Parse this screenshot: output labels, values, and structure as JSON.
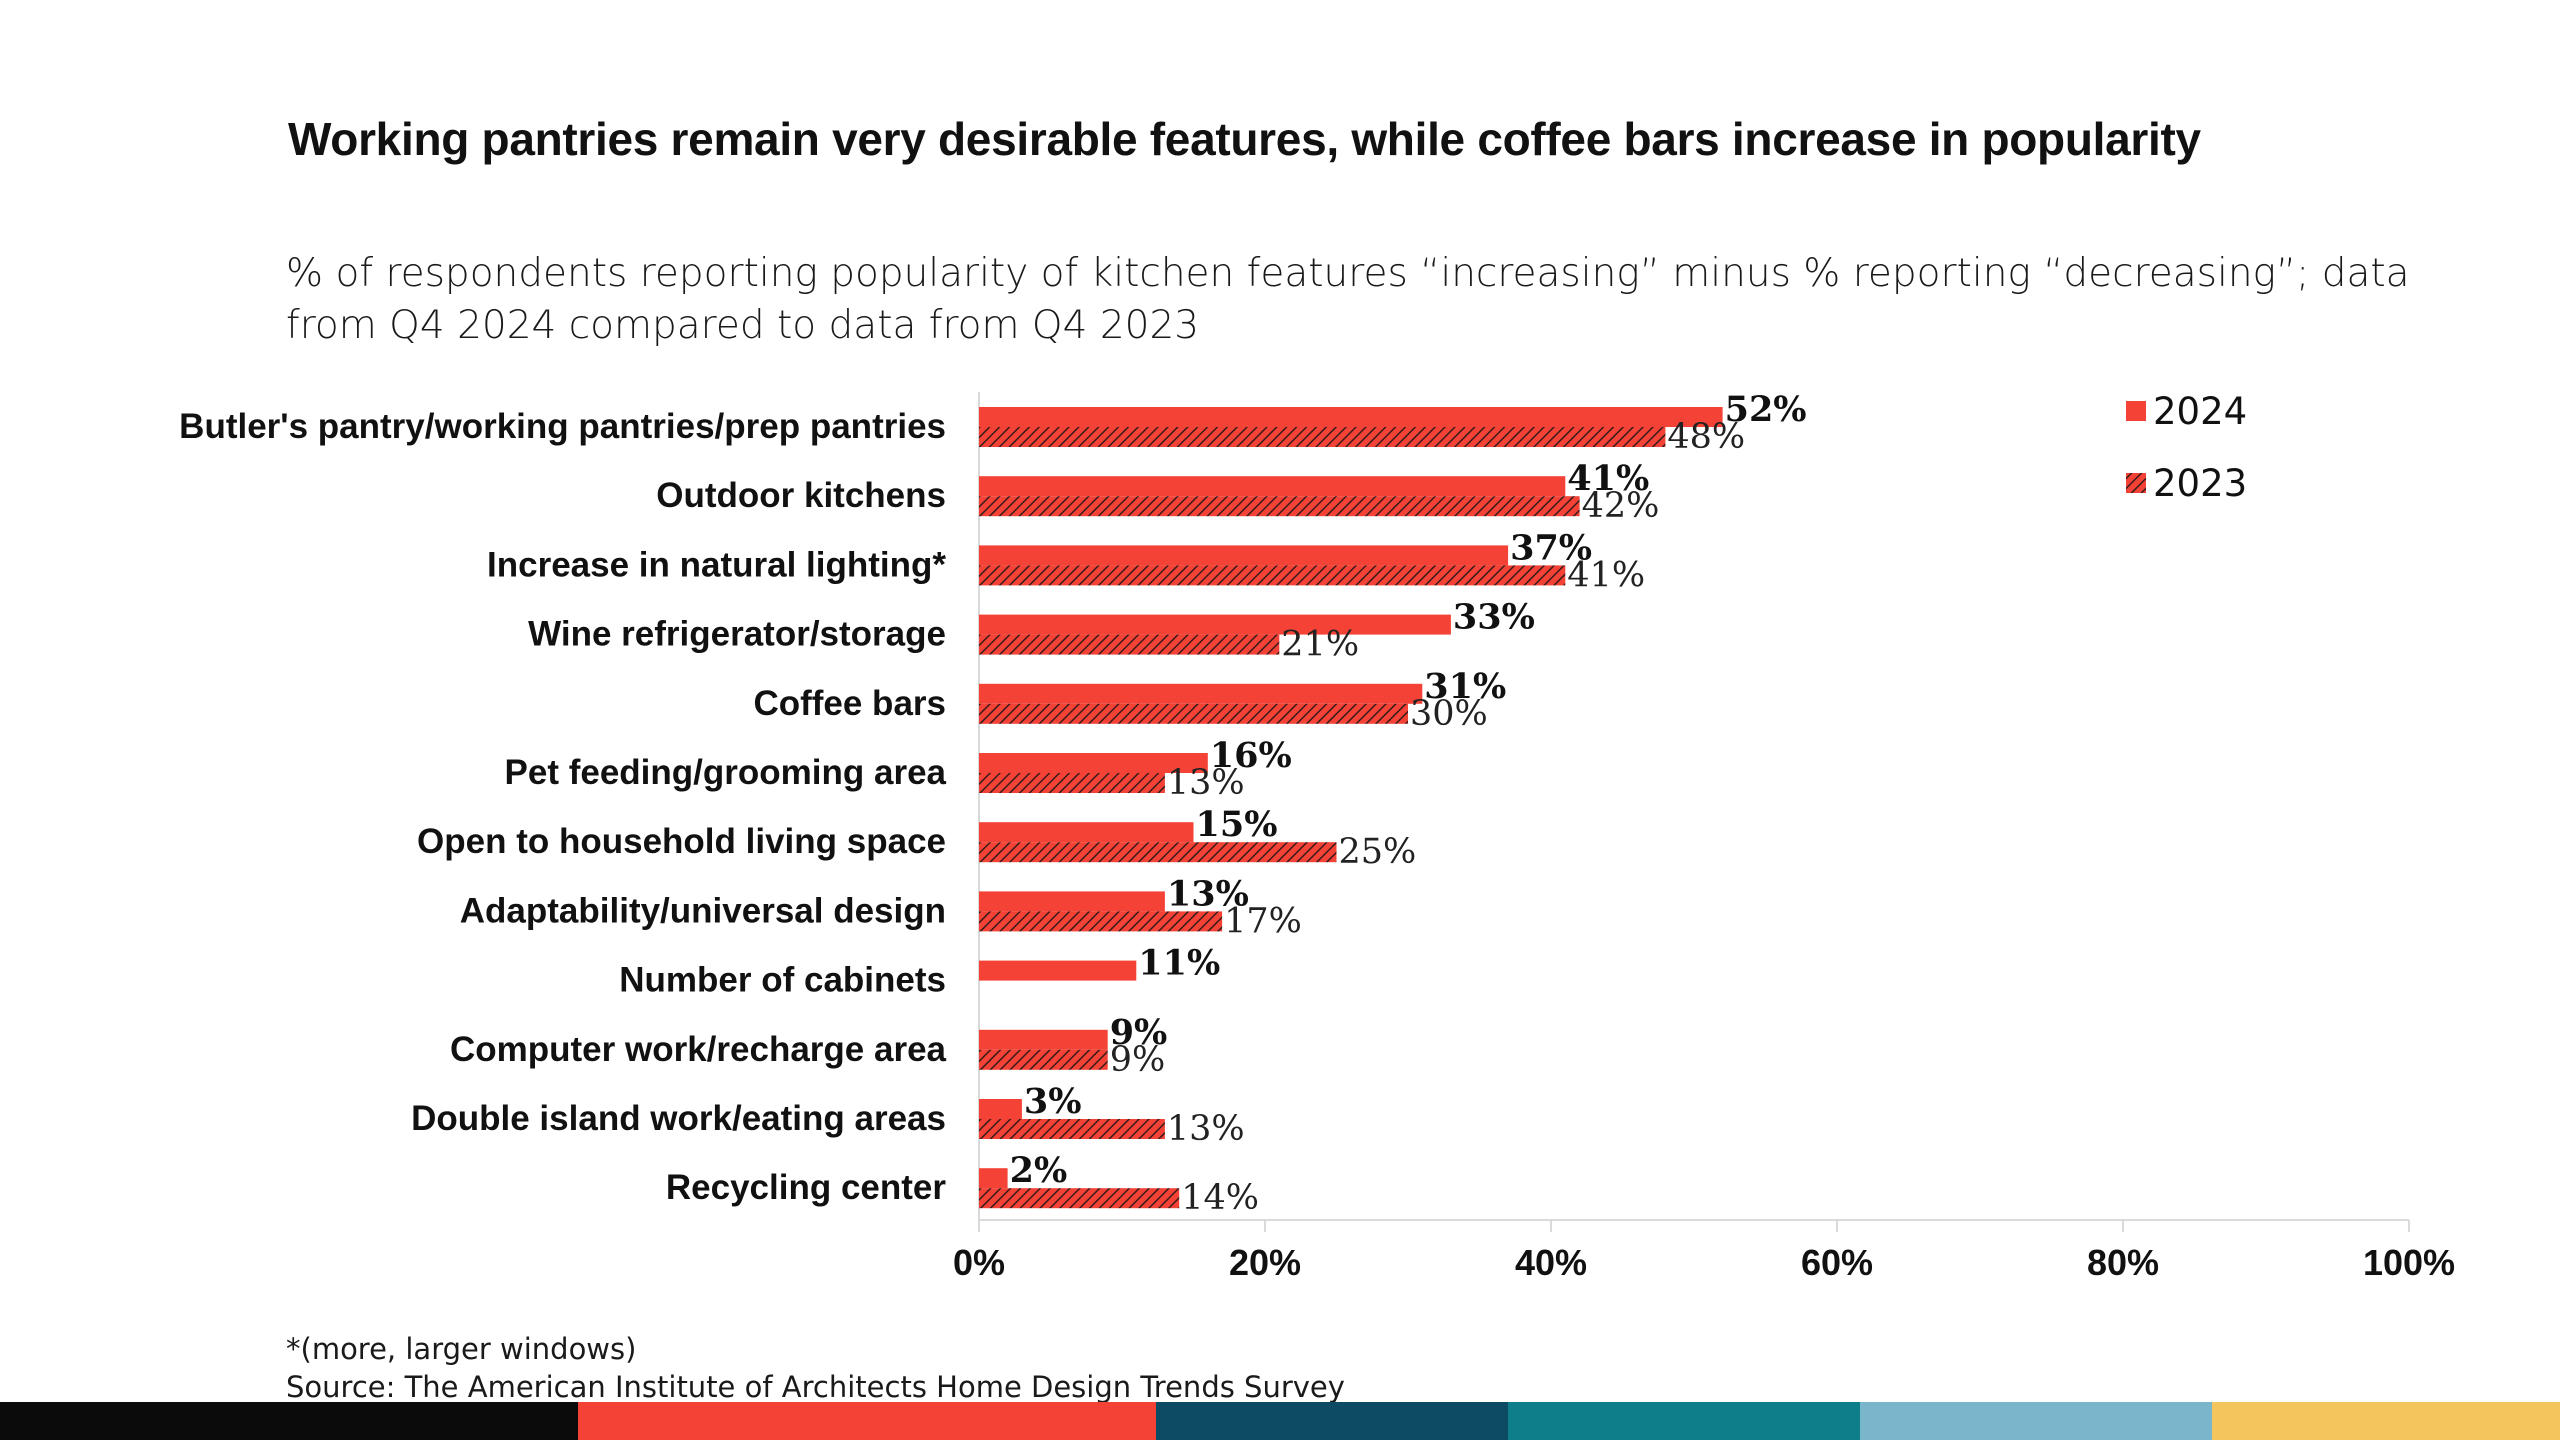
{
  "title": "Working pantries remain very desirable features, while coffee bars increase in popularity",
  "subtitle": "% of respondents reporting popularity of kitchen features “increasing” minus % reporting “decreasing”; data from Q4 2024 compared to data from Q4 2023",
  "footnote": "*(more, larger windows)",
  "source": "Source: The American Institute of Architects Home Design Trends Survey",
  "colors": {
    "series_2024": "#f44336",
    "series_2023": "#f44336",
    "hatch": "#3a1a1a",
    "axis": "#d9d9d9",
    "footer_bar": [
      "#0b0b0b",
      "#f44336",
      "#0d4a63",
      "#0e7f8a",
      "#79b6cc",
      "#f4c55c"
    ]
  },
  "chart_data": {
    "type": "bar",
    "orientation": "horizontal",
    "categories": [
      "Butler's pantry/working pantries/prep pantries",
      "Outdoor kitchens",
      "Increase in natural lighting*",
      "Wine refrigerator/storage",
      "Coffee bars",
      "Pet feeding/grooming area",
      "Open to household living space",
      "Adaptability/universal design",
      "Number of cabinets",
      "Computer work/recharge area",
      "Double island work/eating areas",
      "Recycling center"
    ],
    "series": [
      {
        "name": "2024",
        "values": [
          52,
          41,
          37,
          33,
          31,
          16,
          15,
          13,
          11,
          9,
          3,
          2
        ],
        "labels": [
          "52%",
          "41%",
          "37%",
          "33%",
          "31%",
          "16%",
          "15%",
          "13%",
          "11%",
          "9%",
          "3%",
          "2%"
        ],
        "style": "solid"
      },
      {
        "name": "2023",
        "values": [
          48,
          42,
          41,
          21,
          30,
          13,
          25,
          17,
          null,
          9,
          13,
          14
        ],
        "labels": [
          "48%",
          "42%",
          "41%",
          "21%",
          "30%",
          "13%",
          "25%",
          "17%",
          "",
          "9%",
          "13%",
          "14%"
        ],
        "style": "hatched"
      }
    ],
    "xlim": [
      0,
      100
    ],
    "xticks": [
      0,
      20,
      40,
      60,
      80,
      100
    ],
    "xtick_labels": [
      "0%",
      "20%",
      "40%",
      "60%",
      "80%",
      "100%"
    ],
    "legend_position": "top-right",
    "grid": false
  }
}
